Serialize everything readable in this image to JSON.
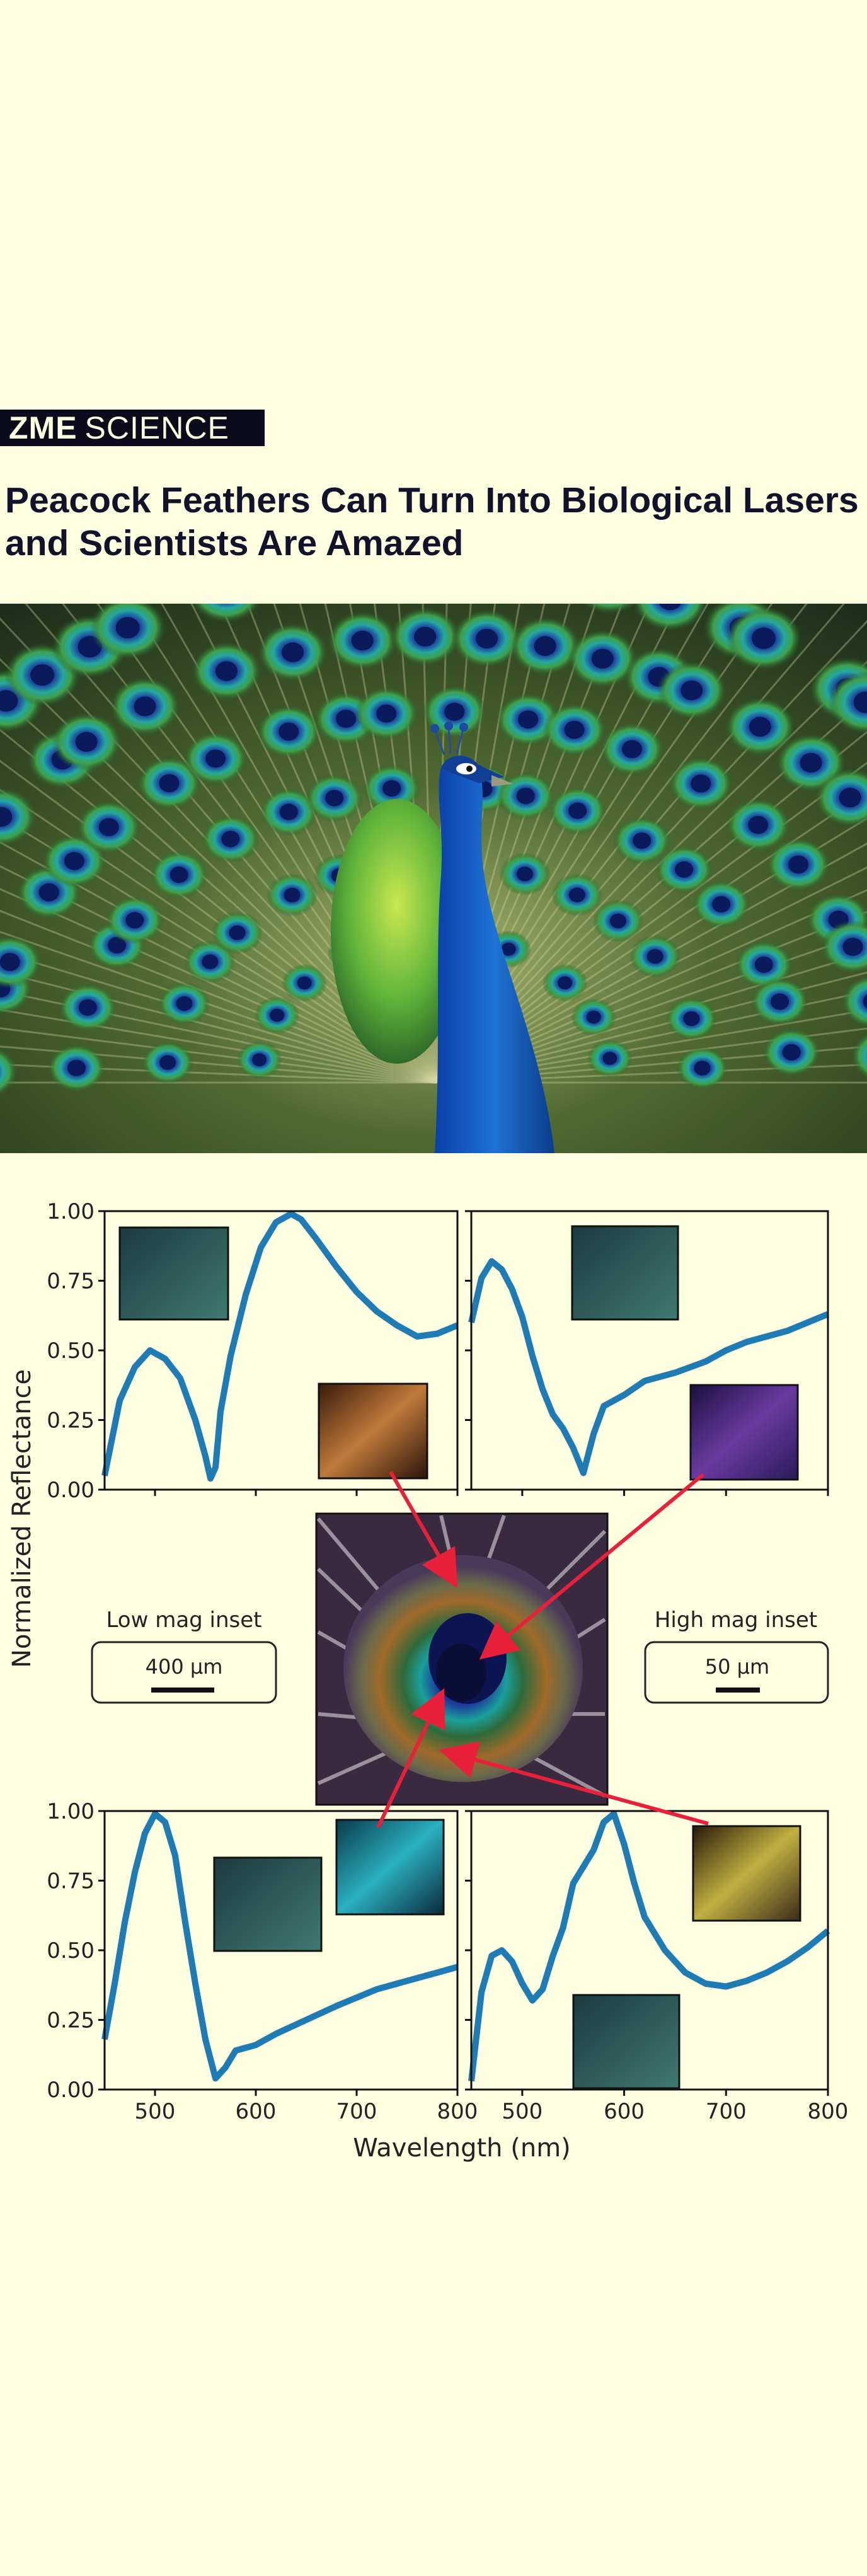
{
  "header": {
    "logo_bold": "ZME",
    "logo_light": "SCIENCE"
  },
  "article": {
    "headline_line1": "Peacock Feathers Can Turn Into Biological Lasers",
    "headline_line2": "and Scientists Are Amazed"
  },
  "colors": {
    "background": "#fefee0",
    "curve": "#1f7bb4",
    "arrow": "#e8203a",
    "logo_bg": "#0b0b1c"
  },
  "figure": {
    "low_mag_label": "Low mag inset",
    "low_mag_scale": "400 µm",
    "high_mag_label": "High mag inset",
    "high_mag_scale": "50 µm"
  },
  "chart_data": {
    "type": "line",
    "xlabel": "Wavelength (nm)",
    "ylabel": "Normalized Reflectance",
    "xlim": [
      450,
      800
    ],
    "ylim": [
      0,
      1
    ],
    "xticks": [
      "500",
      "600",
      "700",
      "800"
    ],
    "yticks": [
      "0.00",
      "0.25",
      "0.50",
      "0.75",
      "1.00"
    ],
    "grid": false,
    "panels": [
      {
        "position": "top-left",
        "series": [
          {
            "x": [
              450,
              465,
              480,
              495,
              510,
              525,
              540,
              550,
              555,
              560,
              565,
              575,
              590,
              605,
              620,
              635,
              645,
              660,
              680,
              700,
              720,
              740,
              760,
              780,
              800
            ],
            "values": [
              0.05,
              0.32,
              0.44,
              0.5,
              0.47,
              0.4,
              0.25,
              0.12,
              0.04,
              0.08,
              0.28,
              0.48,
              0.7,
              0.87,
              0.96,
              0.99,
              0.97,
              0.9,
              0.8,
              0.71,
              0.64,
              0.59,
              0.55,
              0.56,
              0.59
            ]
          }
        ]
      },
      {
        "position": "top-right",
        "series": [
          {
            "x": [
              450,
              460,
              470,
              480,
              490,
              500,
              510,
              520,
              530,
              540,
              550,
              560,
              570,
              580,
              600,
              620,
              650,
              680,
              700,
              720,
              740,
              760,
              780,
              800
            ],
            "values": [
              0.6,
              0.76,
              0.82,
              0.79,
              0.72,
              0.62,
              0.48,
              0.36,
              0.27,
              0.22,
              0.15,
              0.06,
              0.2,
              0.3,
              0.34,
              0.39,
              0.42,
              0.46,
              0.5,
              0.53,
              0.55,
              0.57,
              0.6,
              0.63
            ]
          }
        ]
      },
      {
        "position": "bottom-left",
        "series": [
          {
            "x": [
              450,
              460,
              470,
              480,
              490,
              500,
              510,
              520,
              530,
              540,
              550,
              560,
              570,
              580,
              600,
              620,
              650,
              680,
              700,
              720,
              740,
              760,
              780,
              800
            ],
            "values": [
              0.18,
              0.38,
              0.6,
              0.78,
              0.92,
              0.99,
              0.96,
              0.84,
              0.6,
              0.38,
              0.18,
              0.04,
              0.08,
              0.14,
              0.16,
              0.2,
              0.25,
              0.3,
              0.33,
              0.36,
              0.38,
              0.4,
              0.42,
              0.44
            ]
          }
        ]
      },
      {
        "position": "bottom-right",
        "series": [
          {
            "x": [
              450,
              460,
              470,
              480,
              490,
              500,
              510,
              520,
              530,
              540,
              550,
              560,
              570,
              580,
              590,
              600,
              610,
              620,
              640,
              660,
              680,
              700,
              720,
              740,
              760,
              780,
              800
            ],
            "values": [
              0.03,
              0.35,
              0.48,
              0.5,
              0.46,
              0.38,
              0.32,
              0.36,
              0.48,
              0.58,
              0.74,
              0.8,
              0.86,
              0.96,
              0.99,
              0.88,
              0.74,
              0.62,
              0.5,
              0.42,
              0.38,
              0.37,
              0.39,
              0.42,
              0.46,
              0.51,
              0.57
            ]
          }
        ]
      }
    ]
  }
}
